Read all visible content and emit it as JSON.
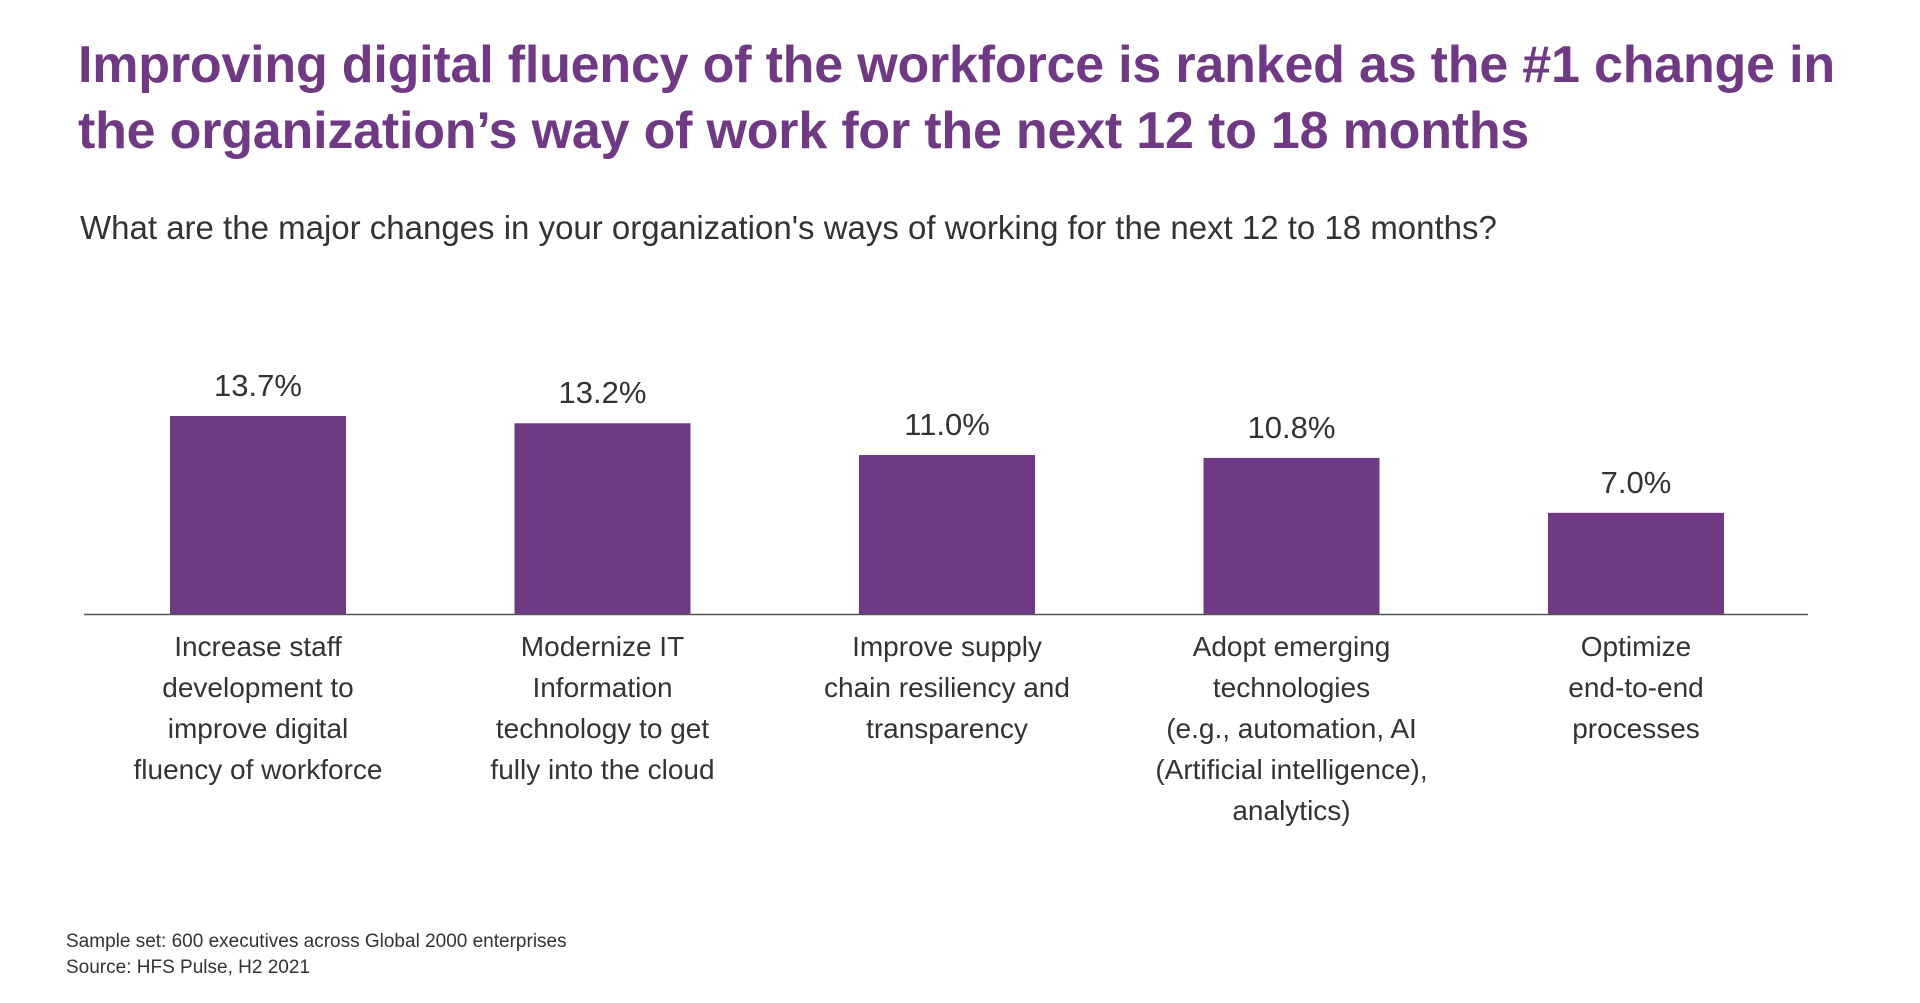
{
  "headline": "Improving digital fluency of the workforce is ranked as the #1 change in the organization’s way of work for the next 12 to 18 months",
  "chart_data": {
    "type": "bar",
    "title": "What are the major changes in your organization's ways of working for the next 12 to 18 months?",
    "categories": [
      "Increase staff\ndevelopment to\nimprove digital\nfluency of workforce",
      "Modernize IT\nInformation\ntechnology to get\nfully into the cloud",
      "Improve supply\nchain resiliency and\ntransparency",
      "Adopt emerging\ntechnologies\n(e.g., automation, AI\n(Artificial intelligence),\nanalytics)",
      "Optimize\nend-to-end\nprocesses"
    ],
    "values": [
      13.7,
      13.2,
      11.0,
      10.8,
      7.0
    ],
    "value_labels": [
      "13.7%",
      "13.2%",
      "11.0%",
      "10.8%",
      "7.0%"
    ],
    "ylim": [
      0,
      13.7
    ],
    "grid": false,
    "bar_color": "#6f3a83"
  },
  "footnotes": {
    "sample": "Sample set: 600 executives across Global 2000 enterprises",
    "source": "Source: HFS Pulse, H2 2021"
  },
  "colors": {
    "accent": "#6f3a83",
    "text": "#333333",
    "axis": "#555555"
  }
}
